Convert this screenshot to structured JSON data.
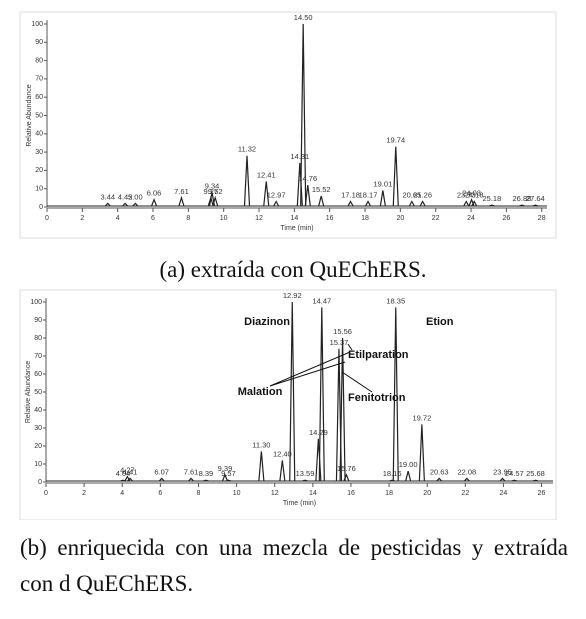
{
  "chart_data": [
    {
      "type": "chromatogram",
      "ylabel": "Relative Abundance",
      "xlabel": "Time (min)",
      "caption": "(a) extraída con QuEChERS.",
      "x": [
        3.44,
        4.42,
        5.0,
        6.06,
        7.61,
        9.27,
        9.34,
        9.52,
        11.32,
        12.41,
        12.97,
        14.31,
        14.5,
        14.76,
        15.52,
        17.18,
        18.17,
        19.01,
        19.74,
        20.65,
        21.26,
        23.73,
        24.03,
        24.18,
        25.18,
        26.88,
        27.64
      ],
      "x_labels": [
        "3.44",
        "4.42",
        "5.00",
        "6.06",
        "7.61",
        "9.27",
        "9.34",
        "9.52",
        "11.32",
        "12.41",
        "12.97",
        "14.31",
        "14.50",
        "14.76",
        "15.52",
        "17.18",
        "18.17",
        "19.01",
        "19.74",
        "20.65",
        "21.26",
        "23.73",
        "24.03",
        "24.18",
        "25.18",
        "26.88",
        "27.64"
      ],
      "values": [
        2,
        2,
        2,
        4,
        5,
        5,
        8,
        5,
        28,
        14,
        3,
        24,
        100,
        12,
        6,
        3,
        3,
        9,
        33,
        3,
        3,
        3,
        4,
        3,
        1,
        1,
        1
      ],
      "color": "#222222",
      "xlim": [
        0,
        28.3
      ],
      "xticks": [
        0,
        2,
        4,
        6,
        8,
        10,
        12,
        14,
        16,
        18,
        20,
        22,
        24,
        26,
        28
      ],
      "ylim": [
        0,
        100
      ],
      "yticks": [
        0,
        10,
        20,
        30,
        40,
        50,
        60,
        70,
        80,
        90,
        100
      ]
    },
    {
      "type": "chromatogram",
      "ylabel": "Relative Abundance",
      "xlabel": "Time (min)",
      "caption": "(b) enriquecida con una mezcla de pesticidas y extraída con d QuEChERS.",
      "x": [
        4.04,
        4.27,
        4.41,
        6.07,
        7.61,
        8.39,
        9.39,
        9.57,
        11.3,
        12.4,
        12.92,
        13.59,
        14.29,
        14.47,
        15.37,
        15.56,
        15.76,
        18.16,
        18.35,
        19.0,
        19.72,
        20.63,
        22.08,
        23.95,
        24.57,
        25.68
      ],
      "x_labels": [
        "4.04",
        "4.27",
        "4.41",
        "6.07",
        "7.61",
        "8.39",
        "9.39",
        "9.57",
        "11.30",
        "12.40",
        "12.92",
        "13.59",
        "14.29",
        "14.47",
        "15.37",
        "15.56",
        "15.76",
        "18.16",
        "18.35",
        "19.00",
        "19.72",
        "20.63",
        "22.08",
        "23.95",
        "24.57",
        "25.68"
      ],
      "values": [
        1,
        3,
        2,
        2,
        2,
        1,
        4,
        1,
        17,
        12,
        100,
        1,
        24,
        97,
        74,
        80,
        4,
        1,
        97,
        6,
        32,
        2,
        2,
        2,
        1,
        1
      ],
      "color": "#222222",
      "annotations": [
        "Diazinon",
        "Malation",
        "Etilparation",
        "Fenitotrion",
        "Etion"
      ],
      "xlim": [
        0,
        26.6
      ],
      "xticks": [
        0,
        2,
        4,
        6,
        8,
        10,
        12,
        14,
        16,
        18,
        20,
        22,
        24,
        26
      ],
      "ylim": [
        0,
        100
      ],
      "yticks": [
        0,
        10,
        20,
        30,
        40,
        50,
        60,
        70,
        80,
        90,
        100
      ]
    }
  ]
}
